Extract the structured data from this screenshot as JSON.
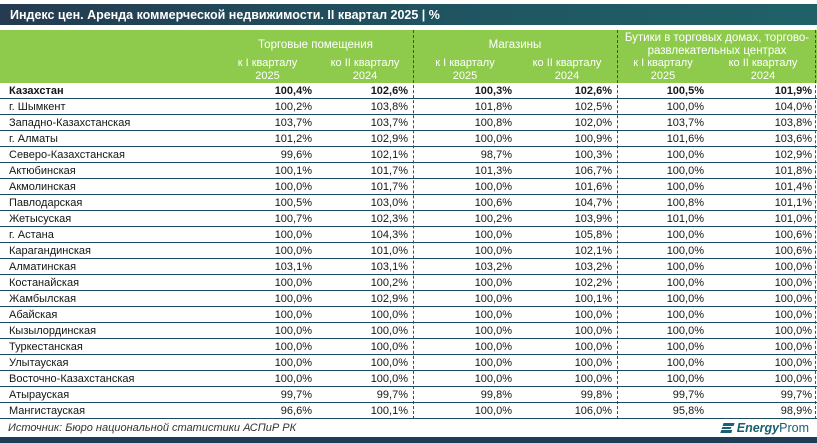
{
  "title_bar": {
    "title": "Индекс цен. Аренда коммерческой недвижимости. II квартал 2025 | %"
  },
  "chart_data": {
    "type": "table",
    "title": "Индекс цен. Аренда коммерческой недвижимости. II квартал 2025 | %",
    "column_groups": [
      {
        "label": "Торговые помещения",
        "sub": [
          {
            "period": "к I кварталу",
            "year": "2025"
          },
          {
            "period": "ко II кварталу",
            "year": "2024"
          }
        ]
      },
      {
        "label": "Магазины",
        "sub": [
          {
            "period": "к I кварталу",
            "year": "2025"
          },
          {
            "period": "ко II кварталу",
            "year": "2024"
          }
        ]
      },
      {
        "label": "Бутики в торговых домах, торгово-развлекательных центрах",
        "sub": [
          {
            "period": "к I кварталу",
            "year": "2025"
          },
          {
            "period": "ко II кварталу",
            "year": "2024"
          }
        ]
      }
    ],
    "rows": [
      {
        "region": "Казахстан",
        "bold": true,
        "values": [
          "100,4%",
          "102,6%",
          "100,3%",
          "102,6%",
          "100,5%",
          "101,9%"
        ]
      },
      {
        "region": "г. Шымкент",
        "bold": false,
        "values": [
          "100,2%",
          "103,8%",
          "101,8%",
          "102,5%",
          "100,0%",
          "104,0%"
        ]
      },
      {
        "region": "Западно-Казахстанская",
        "bold": false,
        "values": [
          "103,7%",
          "103,7%",
          "100,8%",
          "102,0%",
          "103,7%",
          "103,8%"
        ]
      },
      {
        "region": "г. Алматы",
        "bold": false,
        "values": [
          "101,2%",
          "102,9%",
          "100,0%",
          "100,9%",
          "101,6%",
          "103,6%"
        ]
      },
      {
        "region": "Северо-Казахстанская",
        "bold": false,
        "values": [
          "99,6%",
          "102,1%",
          "98,7%",
          "100,3%",
          "100,0%",
          "102,9%"
        ]
      },
      {
        "region": "Актюбинская",
        "bold": false,
        "values": [
          "100,1%",
          "101,7%",
          "101,3%",
          "106,7%",
          "100,0%",
          "101,8%"
        ]
      },
      {
        "region": "Акмолинская",
        "bold": false,
        "values": [
          "100,0%",
          "101,7%",
          "100,0%",
          "101,6%",
          "100,0%",
          "101,4%"
        ]
      },
      {
        "region": "Павлодарская",
        "bold": false,
        "values": [
          "100,5%",
          "103,0%",
          "100,6%",
          "104,7%",
          "100,8%",
          "101,1%"
        ]
      },
      {
        "region": "Жетысуская",
        "bold": false,
        "values": [
          "100,7%",
          "102,3%",
          "100,2%",
          "103,9%",
          "101,0%",
          "101,0%"
        ]
      },
      {
        "region": "г. Астана",
        "bold": false,
        "values": [
          "100,0%",
          "104,3%",
          "100,0%",
          "105,8%",
          "100,0%",
          "100,6%"
        ]
      },
      {
        "region": "Карагандинская",
        "bold": false,
        "values": [
          "100,0%",
          "101,0%",
          "100,0%",
          "102,1%",
          "100,0%",
          "100,6%"
        ]
      },
      {
        "region": "Алматинская",
        "bold": false,
        "values": [
          "103,1%",
          "103,1%",
          "103,2%",
          "103,2%",
          "100,0%",
          "100,0%"
        ]
      },
      {
        "region": "Костанайская",
        "bold": false,
        "values": [
          "100,0%",
          "100,2%",
          "100,0%",
          "102,2%",
          "100,0%",
          "100,0%"
        ]
      },
      {
        "region": "Жамбылская",
        "bold": false,
        "values": [
          "100,0%",
          "102,9%",
          "100,0%",
          "100,1%",
          "100,0%",
          "100,0%"
        ]
      },
      {
        "region": "Абайская",
        "bold": false,
        "values": [
          "100,0%",
          "100,0%",
          "100,0%",
          "100,0%",
          "100,0%",
          "100,0%"
        ]
      },
      {
        "region": "Кызылординская",
        "bold": false,
        "values": [
          "100,0%",
          "100,0%",
          "100,0%",
          "100,0%",
          "100,0%",
          "100,0%"
        ]
      },
      {
        "region": "Туркестанская",
        "bold": false,
        "values": [
          "100,0%",
          "100,0%",
          "100,0%",
          "100,0%",
          "100,0%",
          "100,0%"
        ]
      },
      {
        "region": "Улытауская",
        "bold": false,
        "values": [
          "100,0%",
          "100,0%",
          "100,0%",
          "100,0%",
          "100,0%",
          "100,0%"
        ]
      },
      {
        "region": "Восточно-Казахстанская",
        "bold": false,
        "values": [
          "100,0%",
          "100,0%",
          "100,0%",
          "100,0%",
          "100,0%",
          "100,0%"
        ]
      },
      {
        "region": "Атырауская",
        "bold": false,
        "values": [
          "99,7%",
          "99,7%",
          "99,8%",
          "99,8%",
          "99,7%",
          "99,7%"
        ]
      },
      {
        "region": "Мангистауская",
        "bold": false,
        "values": [
          "96,6%",
          "100,1%",
          "100,0%",
          "106,0%",
          "95,8%",
          "98,9%"
        ]
      }
    ]
  },
  "footer": {
    "source": "Источник: Бюро национальной статистики АСПиР РК",
    "logo": {
      "text_bold": "Energy",
      "text_regular": "Prom"
    }
  },
  "colors": {
    "title_bar_left": "#243b50",
    "title_bar_right": "#206168",
    "header_green": "#8ecb4d",
    "row_separator": "#1b4a5e",
    "group_separator_dashed": "#1b5a66",
    "bottom_bar": "#1e3e58",
    "logo_teal": "#196070"
  }
}
